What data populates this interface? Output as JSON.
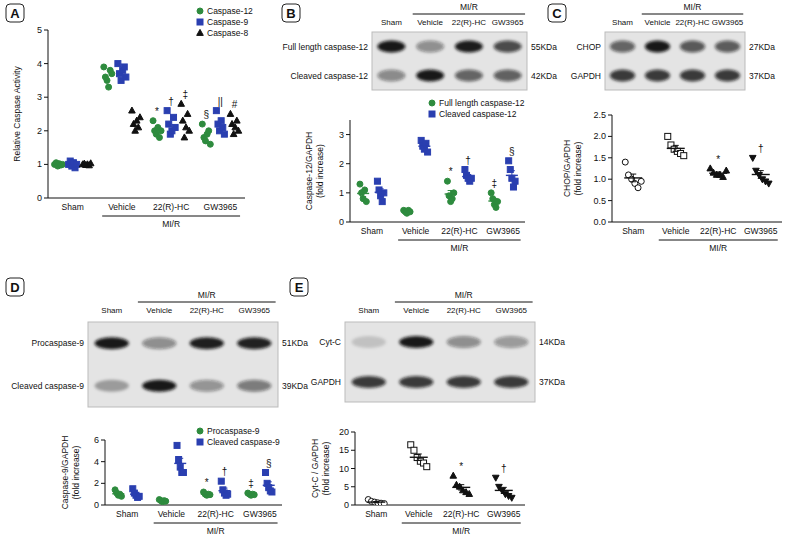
{
  "chart_data": [
    {
      "panel": "A",
      "type": "dotplot",
      "ylabel": [
        "Relative Caspase Activity"
      ],
      "categories": [
        "Sham",
        "Vehicle",
        "22(R)-HC",
        "GW3965"
      ],
      "group_label": "MI/R",
      "ylim": [
        0,
        5
      ],
      "yticks": [
        0,
        1,
        2,
        3,
        4,
        5
      ],
      "legend": "top-right",
      "series": [
        {
          "name": "Caspase-12",
          "color": "#2e8b3e",
          "marker": "circle",
          "values": [
            [
              1.0,
              1.05,
              0.95,
              1.02,
              0.98,
              1.0
            ],
            [
              3.9,
              3.6,
              3.5,
              3.3,
              3.8,
              3.7
            ],
            [
              2.3,
              2.0,
              1.9,
              2.1,
              1.8,
              2.0
            ],
            [
              2.2,
              1.8,
              1.7,
              1.9,
              2.0,
              1.6
            ]
          ],
          "significance": [
            null,
            null,
            "*",
            "§"
          ]
        },
        {
          "name": "Caspase-9",
          "color": "#2a3fb0",
          "marker": "square",
          "values": [
            [
              1.0,
              1.1,
              0.95,
              1.05,
              0.9,
              1.0
            ],
            [
              4.0,
              3.7,
              3.5,
              3.8,
              3.9,
              3.6
            ],
            [
              2.6,
              2.2,
              1.9,
              2.0,
              2.4,
              2.1
            ],
            [
              2.6,
              2.2,
              2.0,
              2.3,
              2.1,
              1.9
            ]
          ],
          "significance": [
            null,
            null,
            "†",
            "||"
          ]
        },
        {
          "name": "Caspase-8",
          "color": "#111111",
          "marker": "triangle",
          "values": [
            [
              1.0,
              1.02,
              0.98,
              1.0,
              0.97,
              1.03
            ],
            [
              2.6,
              2.2,
              2.0,
              2.3,
              2.1,
              2.4
            ],
            [
              2.8,
              2.3,
              1.8,
              2.1,
              2.5,
              2.0
            ],
            [
              2.5,
              2.2,
              1.9,
              2.1,
              2.3,
              2.0
            ]
          ],
          "significance": [
            null,
            null,
            "‡",
            "#"
          ]
        }
      ]
    },
    {
      "panel": "B",
      "type": "dotplot",
      "ylabel": [
        "Caspase-12/GAPDH",
        "(fold increase)"
      ],
      "categories": [
        "Sham",
        "Vehicle",
        "22(R)-HC",
        "GW3965"
      ],
      "group_label": "MI/R",
      "ylim": [
        0,
        3.5
      ],
      "yticks": [
        0,
        1,
        2,
        3
      ],
      "legend": "top-right",
      "blot": {
        "lanes": [
          "Sham",
          "Vehicle",
          "22(R)-HC",
          "GW3965"
        ],
        "group_label": "MI/R",
        "bands": [
          {
            "label": "Full length caspase-12",
            "size": "55KDa"
          },
          {
            "label": "Cleaved caspase-12",
            "size": "42KDa"
          }
        ]
      },
      "series": [
        {
          "name": "Full length caspase-12",
          "color": "#2e8b3e",
          "marker": "circle",
          "values": [
            [
              1.3,
              1.0,
              0.8,
              1.1,
              0.7
            ],
            [
              0.4,
              0.35,
              0.3,
              0.4,
              0.35
            ],
            [
              1.4,
              0.9,
              0.7,
              0.8,
              1.0
            ],
            [
              1.0,
              0.8,
              0.6,
              0.5,
              0.7
            ]
          ],
          "means": [
            0.98,
            0.36,
            0.96,
            0.72
          ],
          "errors": [
            0.11,
            0.02,
            0.12,
            0.09
          ],
          "significance": [
            null,
            null,
            "*",
            "‡"
          ]
        },
        {
          "name": "Cleaved caspase-12",
          "color": "#2a3fb0",
          "marker": "square",
          "values": [
            [
              1.4,
              1.1,
              0.9,
              0.7,
              1.0
            ],
            [
              2.8,
              2.6,
              2.5,
              2.7,
              2.4
            ],
            [
              1.8,
              1.6,
              1.5,
              1.4,
              1.5
            ],
            [
              2.1,
              1.8,
              1.5,
              1.2,
              1.4
            ]
          ],
          "means": [
            1.02,
            2.6,
            1.56,
            1.6
          ],
          "errors": [
            0.12,
            0.07,
            0.07,
            0.16
          ],
          "significance": [
            null,
            null,
            "†",
            "§"
          ]
        }
      ]
    },
    {
      "panel": "C",
      "type": "dotplot",
      "ylabel": [
        "CHOP/GAPDH",
        "(fold increase)"
      ],
      "categories": [
        "Sham",
        "Vehicle",
        "22(R)-HC",
        "GW3965"
      ],
      "group_label": "MI/R",
      "ylim": [
        0,
        2.5
      ],
      "yticks": [
        {
          "value": 0,
          "label": "0.0"
        },
        {
          "value": 0.5,
          "label": "0.5"
        },
        {
          "value": 1,
          "label": "1.0"
        },
        {
          "value": 1.5,
          "label": "1.5"
        },
        {
          "value": 2,
          "label": "2.0"
        },
        {
          "value": 2.5,
          "label": "2.5"
        }
      ],
      "blot": {
        "lanes": [
          "Sham",
          "Vehicle",
          "22(R)-HC",
          "GW3965"
        ],
        "group_label": "MI/R",
        "bands": [
          {
            "label": "CHOP",
            "size": "27KDa"
          },
          {
            "label": "GAPDH",
            "size": "37KDa"
          }
        ]
      },
      "series": [
        {
          "color": "#111111",
          "marker": "open-circle",
          "values": [
            [
              1.4,
              1.1,
              1.0,
              0.9,
              0.8,
              0.95
            ],
            null,
            null,
            null
          ],
          "means": [
            1.03,
            null,
            null,
            null
          ],
          "errors": [
            0.09,
            null,
            null,
            null
          ],
          "significance": [
            null,
            null,
            null,
            null
          ]
        },
        {
          "color": "#111111",
          "marker": "open-square",
          "values": [
            null,
            [
              2.0,
              1.8,
              1.7,
              1.65,
              1.6,
              1.55
            ],
            null,
            null
          ],
          "means": [
            null,
            1.72,
            null,
            null
          ],
          "errors": [
            null,
            0.07,
            null,
            null
          ],
          "significance": [
            null,
            null,
            null,
            null
          ]
        },
        {
          "color": "#111111",
          "marker": "triangle",
          "values": [
            null,
            null,
            [
              1.25,
              1.15,
              1.1,
              1.1,
              1.05,
              1.2
            ],
            null
          ],
          "means": [
            null,
            null,
            1.14,
            null
          ],
          "errors": [
            null,
            null,
            0.03,
            null
          ],
          "significance": [
            null,
            null,
            "*",
            null
          ]
        },
        {
          "color": "#111111",
          "marker": "triangle-down",
          "values": [
            null,
            null,
            null,
            [
              1.5,
              1.2,
              1.1,
              1.0,
              0.95,
              0.9
            ]
          ],
          "means": [
            null,
            null,
            null,
            1.11
          ],
          "errors": [
            null,
            null,
            null,
            0.09
          ],
          "significance": [
            null,
            null,
            null,
            "†"
          ]
        }
      ]
    },
    {
      "panel": "D",
      "type": "dotplot",
      "ylabel": [
        "Caspase-9/GAPDH",
        "(fold increase)"
      ],
      "categories": [
        "Sham",
        "Vehicle",
        "22(R)-HC",
        "GW3965"
      ],
      "group_label": "MI/R",
      "ylim": [
        0,
        6
      ],
      "yticks": [
        0,
        2,
        4,
        6
      ],
      "legend": "top-right",
      "blot": {
        "lanes": [
          "Sham",
          "Vehicle",
          "22(R)-HC",
          "GW3965"
        ],
        "group_label": "MI/R",
        "bands": [
          {
            "label": "Procaspase-9",
            "size": "51KDa"
          },
          {
            "label": "Cleaved caspase-9",
            "size": "39KDa"
          }
        ]
      },
      "series": [
        {
          "name": "Procaspase-9",
          "color": "#2e8b3e",
          "marker": "circle",
          "values": [
            [
              1.4,
              1.1,
              0.9,
              1.0,
              0.8
            ],
            [
              0.5,
              0.4,
              0.3,
              0.4,
              0.35
            ],
            [
              1.2,
              1.0,
              0.9,
              1.0,
              0.95
            ],
            [
              1.1,
              1.0,
              0.9,
              1.0,
              0.95
            ]
          ],
          "means": [
            1.04,
            0.39,
            1.01,
            0.99
          ],
          "errors": [
            0.1,
            0.03,
            0.05,
            0.03
          ],
          "significance": [
            null,
            null,
            "*",
            "‡"
          ]
        },
        {
          "name": "Cleaved caspase-9",
          "color": "#2a3fb0",
          "marker": "square",
          "values": [
            [
              1.5,
              1.1,
              0.9,
              0.7,
              0.8
            ],
            [
              5.5,
              4.2,
              3.5,
              3.0,
              3.0
            ],
            [
              2.2,
              1.4,
              1.1,
              0.9,
              1.0
            ],
            [
              3.0,
              2.0,
              1.6,
              1.3,
              1.2
            ]
          ],
          "means": [
            1.0,
            3.84,
            1.32,
            1.82
          ],
          "errors": [
            0.14,
            0.47,
            0.24,
            0.32
          ],
          "significance": [
            null,
            null,
            "†",
            "§"
          ]
        }
      ]
    },
    {
      "panel": "E",
      "type": "dotplot",
      "ylabel": [
        "Cyt-C / GAPDH",
        "(fold increase)"
      ],
      "categories": [
        "Sham",
        "Vehicle",
        "22(R)-HC",
        "GW3965"
      ],
      "group_label": "MI/R",
      "ylim": [
        0,
        20
      ],
      "yticks": [
        0,
        5,
        10,
        15,
        20
      ],
      "blot": {
        "lanes": [
          "Sham",
          "Vehicle",
          "22(R)-HC",
          "GW3965"
        ],
        "group_label": "MI/R",
        "bands": [
          {
            "label": "Cyt-C",
            "size": "14KDa"
          },
          {
            "label": "GAPDH",
            "size": "37KDa"
          }
        ]
      },
      "series": [
        {
          "color": "#111111",
          "marker": "open-circle",
          "values": [
            [
              1.5,
              1.0,
              0.8,
              0.6,
              0.5,
              0.4
            ],
            null,
            null,
            null
          ],
          "means": [
            0.8,
            null,
            null,
            null
          ],
          "errors": [
            0.17,
            null,
            null,
            null
          ],
          "significance": [
            null,
            null,
            null,
            null
          ]
        },
        {
          "color": "#111111",
          "marker": "open-square",
          "values": [
            null,
            [
              16.5,
              15,
              13,
              12,
              11.5,
              10.5
            ],
            null,
            null
          ],
          "means": [
            null,
            13.08,
            null,
            null
          ],
          "errors": [
            null,
            0.9,
            null,
            null
          ],
          "significance": [
            null,
            null,
            null,
            null
          ]
        },
        {
          "color": "#111111",
          "marker": "triangle",
          "values": [
            null,
            null,
            [
              8,
              5.5,
              5,
              4,
              3.5,
              3
            ],
            null
          ],
          "means": [
            null,
            null,
            4.83,
            null
          ],
          "errors": [
            null,
            null,
            0.74,
            null
          ],
          "significance": [
            null,
            null,
            "*",
            null
          ]
        },
        {
          "color": "#111111",
          "marker": "triangle-down",
          "values": [
            null,
            null,
            null,
            [
              7.5,
              5,
              4,
              3,
              2.5,
              2
            ]
          ],
          "means": [
            null,
            null,
            null,
            4.0
          ],
          "errors": [
            null,
            null,
            null,
            0.83
          ],
          "significance": [
            null,
            null,
            null,
            "†"
          ]
        }
      ]
    }
  ]
}
